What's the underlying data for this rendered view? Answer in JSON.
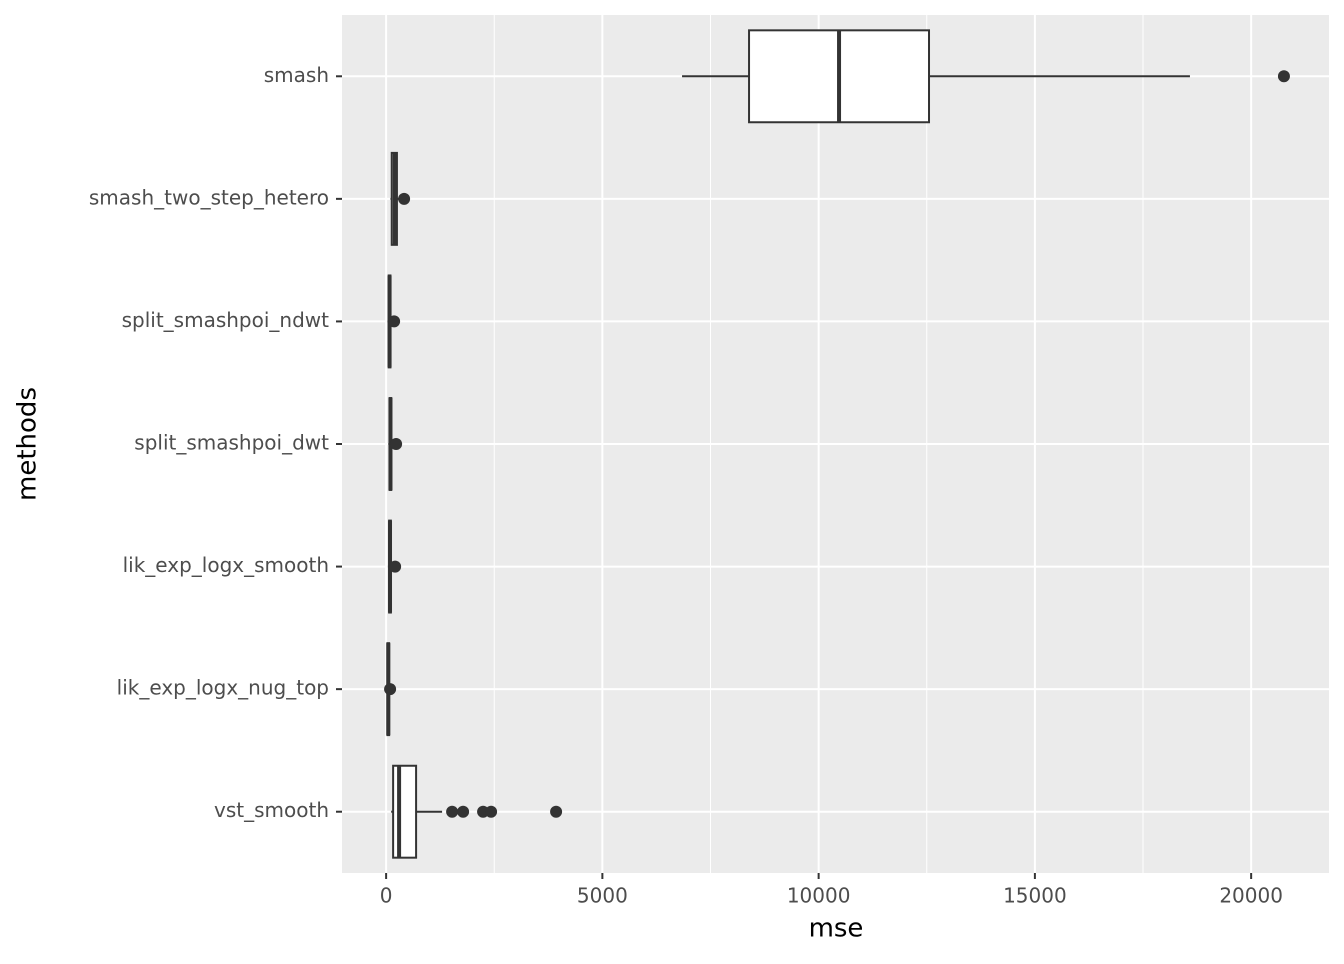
{
  "chart_data": {
    "type": "boxplot",
    "orientation": "horizontal",
    "x_label": "mse",
    "y_label": "methods",
    "categories": [
      "smash",
      "smash_two_step_hetero",
      "split_smashpoi_ndwt",
      "split_smashpoi_dwt",
      "lik_exp_logx_smooth",
      "lik_exp_logx_nug_top",
      "vst_smooth"
    ],
    "min": [
      6842,
      100,
      30,
      50,
      40,
      10,
      116
    ],
    "q1": [
      8391,
      130,
      60,
      80,
      70,
      30,
      162
    ],
    "median": [
      10472,
      200,
      80,
      100,
      90,
      50,
      300
    ],
    "q3": [
      12552,
      250,
      100,
      120,
      110,
      70,
      693
    ],
    "max": [
      18585,
      300,
      130,
      160,
      140,
      80,
      1294
    ],
    "outliers": [
      [
        20758
      ],
      [
        416
      ],
      [
        185
      ],
      [
        231
      ],
      [
        208
      ],
      [
        92
      ],
      [
        1526,
        1780,
        2242,
        2427,
        3930
      ]
    ],
    "xlim": [
      -1020,
      21800
    ],
    "xticks": [
      0,
      5000,
      10000,
      15000,
      20000
    ],
    "minor_xticks": [
      2500,
      7500,
      12500,
      17500
    ],
    "grid": true,
    "box_color": "#333333",
    "box_fill": "#ffffff",
    "panel_color": "#ebebeb"
  }
}
